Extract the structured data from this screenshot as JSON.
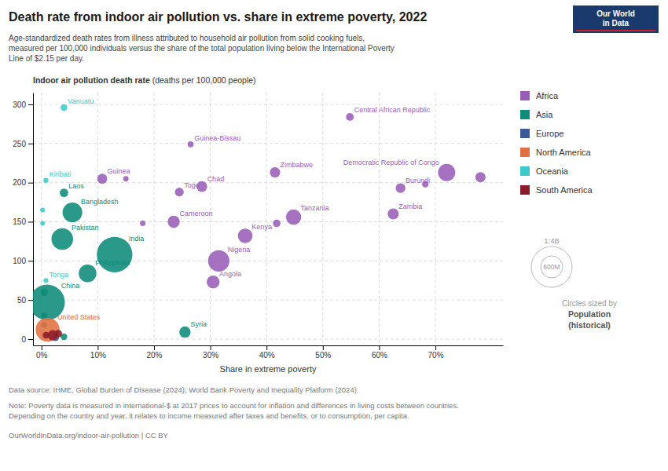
{
  "chart_data": {
    "type": "scatter",
    "title": "Death rate from indoor air pollution vs. share in extreme poverty, 2022",
    "subtitle": "Age-standardized death rates from illness attributed to household air pollution from solid cooking fuels,\nmeasured per 100,000 individuals versus the share of the total population living below the International Poverty\nLine of $2.15 per day.",
    "ylabel": [
      "Indoor air pollution death rate",
      " (deaths per 100,000 people)"
    ],
    "xlabel": "Share in extreme poverty",
    "source": "Data source: IHME, Global Burden of Disease (2024); World Bank Poverty and Inequality Platform (2024)",
    "note": "Note: Poverty data is measured in international-$ at 2017 prices to account for inflation and differences in living costs between countries.\nDepending on the country and year, it relates to income measured after taxes and benefits, or to consumption, per capita.",
    "url": "OurWorldInData.org/indoor-air-pollution | CC BY",
    "logo": [
      "Our World",
      "in Data"
    ],
    "size_legend": {
      "labels": [
        "1:4B",
        "600M"
      ],
      "text": [
        "Circles sized by",
        "Population",
        "(historical)"
      ]
    },
    "xlim": [
      -0.015,
      0.82
    ],
    "ylim": [
      -8,
      315
    ],
    "xticks": [
      {
        "value": 0.0,
        "label": "0%"
      },
      {
        "value": 0.1,
        "label": "10%"
      },
      {
        "value": 0.2,
        "label": "20%"
      },
      {
        "value": 0.3,
        "label": "30%"
      },
      {
        "value": 0.4,
        "label": "40%"
      },
      {
        "value": 0.5,
        "label": "50%"
      },
      {
        "value": 0.6,
        "label": "60%"
      },
      {
        "value": 0.7,
        "label": "70%"
      }
    ],
    "yticks": [
      0,
      50,
      100,
      150,
      200,
      250,
      300
    ],
    "grid": true,
    "legend": "right",
    "series": [
      {
        "name": "Africa",
        "color": "#9A5DB7",
        "x": [
          0.265,
          0.108,
          0.245,
          0.285,
          0.235,
          0.315,
          0.305,
          0.362,
          0.415,
          0.448,
          0.548,
          0.72,
          0.638,
          0.625,
          0.15,
          0.18,
          0.418,
          0.682,
          0.78
        ],
        "values": [
          249,
          205,
          188,
          195,
          150,
          100,
          73,
          132,
          213,
          156,
          284,
          213,
          193,
          160,
          205,
          148,
          148,
          198,
          207
        ],
        "sizes": [
          0.22,
          1.4,
          0.88,
          1.8,
          2.8,
          22.0,
          3.5,
          5.5,
          1.6,
          6.5,
          0.55,
          10.0,
          1.3,
          2.0,
          0.15,
          0.15,
          0.5,
          0.3,
          1.5
        ],
        "labels": [
          "Guinea-Bissau",
          "Guinea",
          "Togo",
          "Chad",
          "Cameroon",
          "Nigeria",
          "Angola",
          "Kenya",
          "Zimbabwe",
          "Tanzania",
          "Central African Republic",
          "Democratic Republic of Congo",
          "Burundi",
          "Zambia",
          null,
          null,
          null,
          null,
          null
        ]
      },
      {
        "name": "Asia",
        "color": "#0E8B7A",
        "x": [
          0.04,
          0.055,
          0.037,
          0.13,
          0.082,
          0.01,
          0.255,
          0.005,
          0.005,
          0.005,
          0.04
        ],
        "values": [
          187,
          162,
          128,
          108,
          84,
          47,
          9,
          60,
          30,
          18,
          3
        ],
        "sizes": [
          0.75,
          16.5,
          23.0,
          140.0,
          11.0,
          140.0,
          2.2,
          0.5,
          0.3,
          0.2,
          0.3
        ],
        "labels": [
          "Laos",
          "Bangladesh",
          "Pakistan",
          "India",
          "Philippines",
          "China",
          "Syria",
          null,
          null,
          null,
          null
        ]
      },
      {
        "name": "Europe",
        "color": "#3C5A9A",
        "x": [
          0.025
        ],
        "values": [
          2
        ],
        "sizes": [
          0.4
        ],
        "labels": [
          null
        ]
      },
      {
        "name": "North America",
        "color": "#E07040",
        "x": [
          0.011
        ],
        "values": [
          12
        ],
        "sizes": [
          33.0
        ],
        "labels": [
          "United States"
        ]
      },
      {
        "name": "Oceania",
        "color": "#3CC9C9",
        "x": [
          0.04,
          0.008,
          0.008,
          0.002,
          0.002
        ],
        "values": [
          296,
          203,
          75,
          165,
          148
        ],
        "sizes": [
          0.32,
          0.12,
          0.1,
          0.1,
          0.08
        ],
        "labels": [
          "Vanuatu",
          "Kiribati",
          "Tonga",
          null,
          null
        ]
      },
      {
        "name": "South America",
        "color": "#8B1A2A",
        "x": [
          0.008,
          0.02,
          0.03
        ],
        "values": [
          5,
          5,
          7
        ],
        "sizes": [
          0.3,
          1.5,
          0.5
        ],
        "labels": [
          null,
          null,
          null
        ]
      }
    ]
  }
}
